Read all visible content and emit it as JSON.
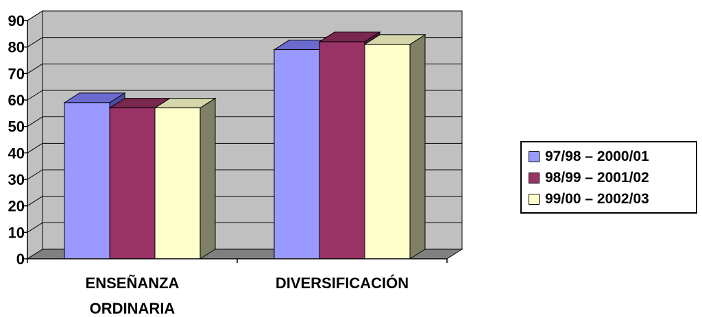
{
  "chart_data": {
    "type": "bar",
    "title": "",
    "xlabel": "",
    "ylabel": "",
    "categories": [
      "ENSEÑANZA ORDINARIA",
      "DIVERSIFICACIÓN"
    ],
    "category_lines": [
      [
        "ENSEÑANZA",
        "ORDINARIA"
      ],
      [
        "DIVERSIFICACIÓN"
      ]
    ],
    "series": [
      {
        "name": "97/98 – 2000/01",
        "values": [
          59,
          79
        ],
        "color": "#9999ff",
        "top_color": "#6b6bcf",
        "side_color": "#4d4da6"
      },
      {
        "name": "98/99 – 2001/02",
        "values": [
          57,
          82
        ],
        "color": "#993366",
        "top_color": "#7a2750",
        "side_color": "#5e1e3e"
      },
      {
        "name": "99/00 – 2002/03",
        "values": [
          57,
          81
        ],
        "color": "#ffffcc",
        "top_color": "#d6d6ab",
        "side_color": "#808066"
      }
    ],
    "ylim": [
      0,
      90
    ],
    "yticks": [
      0,
      10,
      20,
      30,
      40,
      50,
      60,
      70,
      80,
      90
    ],
    "grid": true,
    "three_d": true,
    "legend_position": "right",
    "wall_color": "#c0c0c0",
    "floor_color": "#808080"
  }
}
